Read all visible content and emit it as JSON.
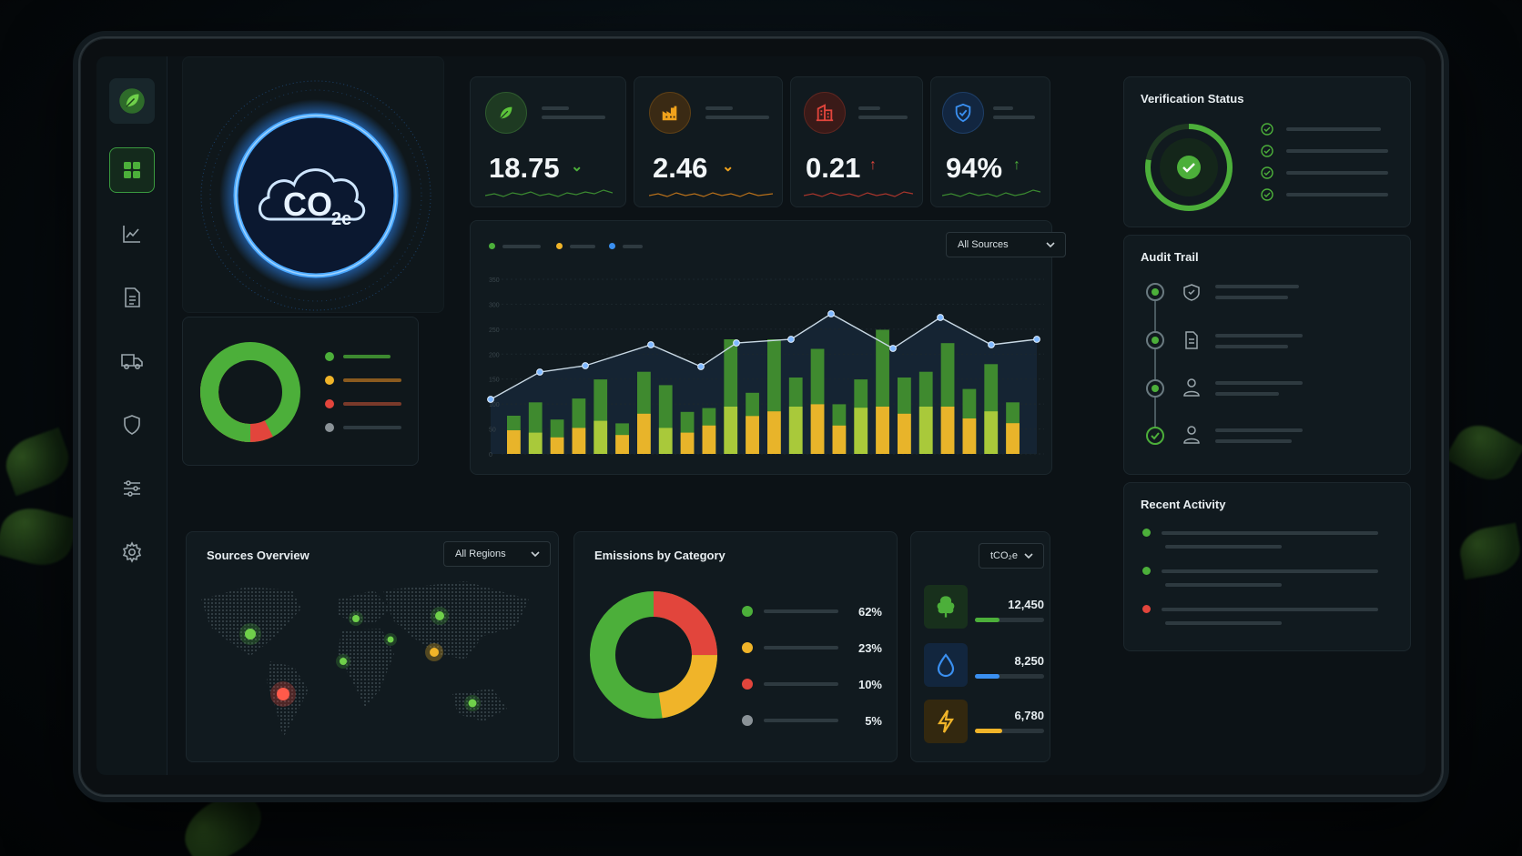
{
  "brand_icon": "leaf-icon",
  "sidebar": {
    "items": [
      {
        "name": "dashboard",
        "icon": "grid-icon",
        "active": true
      },
      {
        "name": "analytics",
        "icon": "line-chart-icon"
      },
      {
        "name": "reports",
        "icon": "document-icon"
      },
      {
        "name": "logistics",
        "icon": "truck-icon"
      },
      {
        "name": "security",
        "icon": "shield-icon"
      },
      {
        "name": "filters",
        "icon": "sliders-icon"
      },
      {
        "name": "settings",
        "icon": "gear-icon"
      }
    ]
  },
  "hero": {
    "co2": "CO",
    "sub": "2e"
  },
  "kpis": [
    {
      "value": "18.75",
      "trend": "down",
      "icon": "leaf-icon",
      "color": "#4caf3a",
      "arrow": "⌄"
    },
    {
      "value": "2.46",
      "trend": "down",
      "icon": "factory-icon",
      "color": "#f0a21c",
      "arrow": "⌄"
    },
    {
      "value": "0.21",
      "trend": "up",
      "icon": "building-icon",
      "color": "#e2453c",
      "arrow": "↑"
    },
    {
      "value": "94%",
      "trend": "up",
      "icon": "shield-check-icon",
      "color": "#3a8ff0",
      "arrow": "↑"
    }
  ],
  "main_chart": {
    "dropdown": "All Sources",
    "y_ticks": [
      "350",
      "300",
      "250",
      "200",
      "150",
      "100",
      "50",
      "0"
    ]
  },
  "verification": {
    "title": "Verification Status"
  },
  "audit": {
    "title": "Audit Trail"
  },
  "activity": {
    "title": "Recent Activity"
  },
  "sources": {
    "title": "Sources Overview",
    "dropdown": "All Regions"
  },
  "categories": {
    "title": "Emissions by Category",
    "rows": [
      {
        "pct": "62%",
        "color": "#4caf3a"
      },
      {
        "pct": "23%",
        "color": "#f0b429"
      },
      {
        "pct": "10%",
        "color": "#e2453c"
      },
      {
        "pct": "5%",
        "color": "#8a9297"
      }
    ]
  },
  "metrics": {
    "unit": "tCO₂e",
    "rows": [
      {
        "icon": "tree-icon",
        "value": "12,450",
        "color": "#4caf3a",
        "fill": 0.35
      },
      {
        "icon": "water-drop-icon",
        "value": "8,250",
        "color": "#3a8ff0",
        "fill": 0.35
      },
      {
        "icon": "lightning-icon",
        "value": "6,780",
        "color": "#f0b429",
        "fill": 0.4
      }
    ]
  },
  "colors": {
    "green": "#4caf3a",
    "yellow": "#f0b429",
    "red": "#e2453c",
    "blue": "#3a8ff0",
    "accent_glow": "#2f8cff"
  }
}
